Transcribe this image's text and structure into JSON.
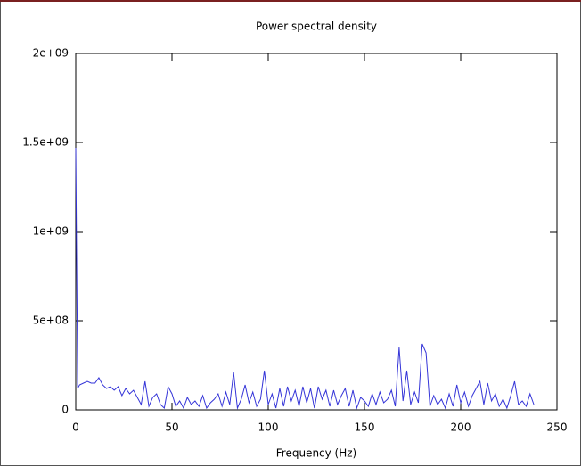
{
  "chart_data": {
    "type": "line",
    "title": "Power spectral density",
    "xlabel": "Frequency (Hz)",
    "color": "#3535d8",
    "x": [
      0,
      1,
      2,
      4,
      6,
      8,
      10,
      12,
      14,
      16,
      18,
      20,
      22,
      24,
      26,
      28,
      30,
      32,
      34,
      36,
      38,
      40,
      42,
      44,
      46,
      48,
      50,
      52,
      54,
      56,
      58,
      60,
      62,
      64,
      66,
      68,
      70,
      72,
      74,
      76,
      78,
      80,
      82,
      84,
      86,
      88,
      90,
      92,
      94,
      96,
      98,
      100,
      102,
      104,
      106,
      108,
      110,
      112,
      114,
      116,
      118,
      120,
      122,
      124,
      126,
      128,
      130,
      132,
      134,
      136,
      138,
      140,
      142,
      144,
      146,
      148,
      150,
      152,
      154,
      156,
      158,
      160,
      162,
      164,
      166,
      168,
      170,
      172,
      174,
      176,
      178,
      180,
      182,
      184,
      186,
      188,
      190,
      192,
      194,
      196,
      198,
      200,
      202,
      204,
      206,
      208,
      210,
      212,
      214,
      216,
      218,
      220,
      222,
      224,
      226,
      228,
      230,
      232,
      234,
      236,
      238
    ],
    "values": [
      1470000000.0,
      120000000.0,
      140000000.0,
      150000000.0,
      160000000.0,
      150000000.0,
      150000000.0,
      180000000.0,
      140000000.0,
      120000000.0,
      130000000.0,
      110000000.0,
      130000000.0,
      80000000.0,
      120000000.0,
      90000000.0,
      110000000.0,
      70000000.0,
      30000000.0,
      160000000.0,
      20000000.0,
      70000000.0,
      90000000.0,
      30000000.0,
      10000000.0,
      130000000.0,
      90000000.0,
      20000000.0,
      50000000.0,
      10000000.0,
      70000000.0,
      30000000.0,
      50000000.0,
      20000000.0,
      80000000.0,
      10000000.0,
      40000000.0,
      60000000.0,
      90000000.0,
      20000000.0,
      100000000.0,
      30000000.0,
      210000000.0,
      10000000.0,
      60000000.0,
      140000000.0,
      40000000.0,
      100000000.0,
      20000000.0,
      60000000.0,
      220000000.0,
      30000000.0,
      90000000.0,
      10000000.0,
      120000000.0,
      20000000.0,
      130000000.0,
      50000000.0,
      110000000.0,
      20000000.0,
      130000000.0,
      40000000.0,
      120000000.0,
      10000000.0,
      130000000.0,
      60000000.0,
      110000000.0,
      20000000.0,
      110000000.0,
      30000000.0,
      80000000.0,
      120000000.0,
      20000000.0,
      110000000.0,
      10000000.0,
      70000000.0,
      50000000.0,
      20000000.0,
      90000000.0,
      30000000.0,
      100000000.0,
      40000000.0,
      60000000.0,
      110000000.0,
      20000000.0,
      350000000.0,
      50000000.0,
      220000000.0,
      30000000.0,
      100000000.0,
      40000000.0,
      370000000.0,
      320000000.0,
      20000000.0,
      80000000.0,
      30000000.0,
      60000000.0,
      10000000.0,
      90000000.0,
      20000000.0,
      140000000.0,
      40000000.0,
      100000000.0,
      20000000.0,
      80000000.0,
      120000000.0,
      160000000.0,
      30000000.0,
      150000000.0,
      50000000.0,
      90000000.0,
      20000000.0,
      60000000.0,
      10000000.0,
      80000000.0,
      160000000.0,
      30000000.0,
      50000000.0,
      20000000.0,
      90000000.0,
      30000000.0
    ],
    "xlim": [
      0,
      250
    ],
    "xticks": [
      0,
      50,
      100,
      150,
      200,
      250
    ],
    "ylim": [
      0,
      2000000000
    ],
    "yticks": [
      0,
      {
        "value": 500000000,
        "label": "5e+08"
      },
      {
        "value": 1000000000,
        "label": "1e+09"
      },
      {
        "value": 1500000000,
        "label": "1.5e+09"
      },
      {
        "value": 2000000000,
        "label": "2e+09"
      }
    ]
  }
}
